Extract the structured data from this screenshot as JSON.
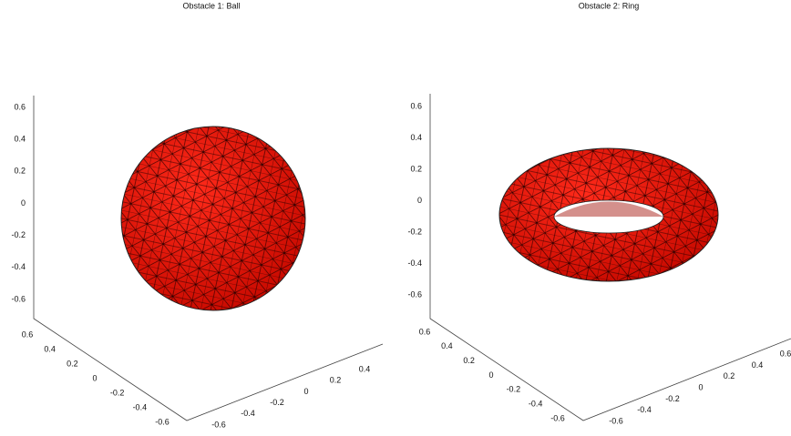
{
  "panels": [
    {
      "title": "Obstacle 1: Ball",
      "zticks": [
        0.6,
        0.4,
        0.2,
        0,
        -0.2,
        -0.4,
        -0.6
      ],
      "xticks": [
        0.6,
        0.4,
        0.2,
        0,
        -0.2,
        -0.4,
        -0.6
      ],
      "yticks": [
        -0.6,
        -0.4,
        -0.2,
        0,
        0.2,
        0.4
      ]
    },
    {
      "title": "Obstacle 2: Ring",
      "zticks": [
        0.6,
        0.4,
        0.2,
        0,
        -0.2,
        -0.4,
        -0.6
      ],
      "xticks": [
        0.6,
        0.4,
        0.2,
        0,
        -0.2,
        -0.4,
        -0.6
      ],
      "yticks": [
        -0.6,
        -0.4,
        -0.2,
        0,
        0.2,
        0.4,
        0.6
      ]
    }
  ]
}
